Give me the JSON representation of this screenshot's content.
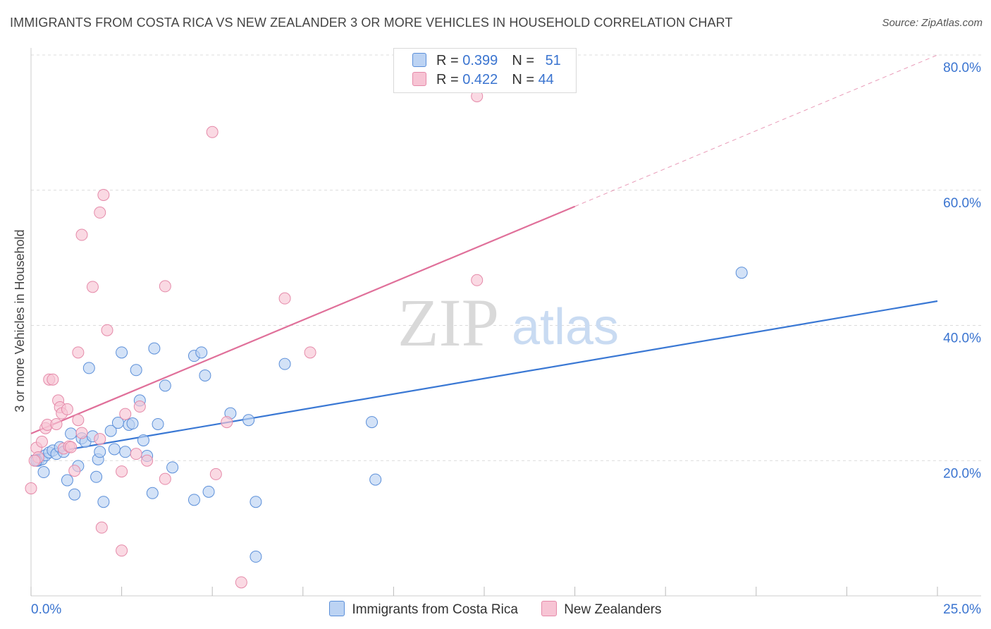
{
  "header": {
    "title": "IMMIGRANTS FROM COSTA RICA VS NEW ZEALANDER 3 OR MORE VEHICLES IN HOUSEHOLD CORRELATION CHART",
    "source": "Source: ZipAtlas.com"
  },
  "watermark": {
    "zip": "ZIP",
    "atlas": "atlas"
  },
  "colors": {
    "blue": "#3a78d4",
    "blue_fill": "#bcd3f3",
    "pink": "#e0709a",
    "pink_fill": "#f7c4d4"
  },
  "legend_top": {
    "rows": [
      {
        "r_label": "R = ",
        "r_value": "0.399",
        "n_label": "N = ",
        "n_value": "51"
      },
      {
        "r_label": "R = ",
        "r_value": "0.422",
        "n_label": "N = ",
        "n_value": "44"
      }
    ]
  },
  "legend_bottom": {
    "items": [
      {
        "label": "Immigrants from Costa Rica"
      },
      {
        "label": "New Zealanders"
      }
    ]
  },
  "chart_data": {
    "type": "scatter",
    "ylabel": "3 or more Vehicles in Household",
    "xlabel": "",
    "xlim": [
      0,
      25
    ],
    "ylim": [
      0,
      80
    ],
    "x_tick_labels": {
      "min": "0.0%",
      "max": "25.0%"
    },
    "y_ticks": [
      20,
      40,
      60,
      80
    ],
    "y_tick_labels": [
      "20.0%",
      "40.0%",
      "60.0%",
      "80.0%"
    ],
    "series": [
      {
        "name": "Immigrants from Costa Rica",
        "r": 0.399,
        "n": 51,
        "trend": {
          "x0": 0.0,
          "y0": 20.7,
          "x1": 25.0,
          "y1": 43.6,
          "dashed_from": null
        },
        "points": [
          [
            0.2,
            20.0
          ],
          [
            0.3,
            20.2
          ],
          [
            0.35,
            18.3
          ],
          [
            0.4,
            20.8
          ],
          [
            0.5,
            21.2
          ],
          [
            0.6,
            21.5
          ],
          [
            0.7,
            21.0
          ],
          [
            0.8,
            22.0
          ],
          [
            0.9,
            21.3
          ],
          [
            1.0,
            17.1
          ],
          [
            1.1,
            24.0
          ],
          [
            1.2,
            15.0
          ],
          [
            1.3,
            19.2
          ],
          [
            1.4,
            23.3
          ],
          [
            1.5,
            22.8
          ],
          [
            1.6,
            33.7
          ],
          [
            1.7,
            23.6
          ],
          [
            1.8,
            17.6
          ],
          [
            1.85,
            20.2
          ],
          [
            1.9,
            21.3
          ],
          [
            2.0,
            13.9
          ],
          [
            2.2,
            24.4
          ],
          [
            2.3,
            21.7
          ],
          [
            2.4,
            25.6
          ],
          [
            2.5,
            36.0
          ],
          [
            2.6,
            21.3
          ],
          [
            2.7,
            25.3
          ],
          [
            2.8,
            25.5
          ],
          [
            2.9,
            33.4
          ],
          [
            3.0,
            28.9
          ],
          [
            3.1,
            23.0
          ],
          [
            3.2,
            20.7
          ],
          [
            3.35,
            15.2
          ],
          [
            3.4,
            36.6
          ],
          [
            3.5,
            25.4
          ],
          [
            3.7,
            31.1
          ],
          [
            3.9,
            19.0
          ],
          [
            4.5,
            14.2
          ],
          [
            4.5,
            35.5
          ],
          [
            4.7,
            36.0
          ],
          [
            4.9,
            15.4
          ],
          [
            4.8,
            32.6
          ],
          [
            5.5,
            27.0
          ],
          [
            6.0,
            26.0
          ],
          [
            6.2,
            13.9
          ],
          [
            6.2,
            5.8
          ],
          [
            7.0,
            34.3
          ],
          [
            9.4,
            25.7
          ],
          [
            9.5,
            17.2
          ],
          [
            19.6,
            47.8
          ],
          [
            0.15,
            20.0
          ]
        ]
      },
      {
        "name": "New Zealanders",
        "r": 0.422,
        "n": 44,
        "trend": {
          "x0": 0.0,
          "y0": 24.0,
          "x1": 25.0,
          "y1": 80.0,
          "dashed_from": 15.0
        },
        "points": [
          [
            0.0,
            15.9
          ],
          [
            0.15,
            21.9
          ],
          [
            0.2,
            20.5
          ],
          [
            0.3,
            22.8
          ],
          [
            0.4,
            24.8
          ],
          [
            0.45,
            25.3
          ],
          [
            0.5,
            32.0
          ],
          [
            0.6,
            32.0
          ],
          [
            0.7,
            25.4
          ],
          [
            0.75,
            28.9
          ],
          [
            0.8,
            27.9
          ],
          [
            0.85,
            27.0
          ],
          [
            0.9,
            21.8
          ],
          [
            1.0,
            27.6
          ],
          [
            1.05,
            22.1
          ],
          [
            1.1,
            22.0
          ],
          [
            1.2,
            18.5
          ],
          [
            1.3,
            26.0
          ],
          [
            1.3,
            36.0
          ],
          [
            1.4,
            24.1
          ],
          [
            1.4,
            53.4
          ],
          [
            1.7,
            45.7
          ],
          [
            1.9,
            23.2
          ],
          [
            1.9,
            56.7
          ],
          [
            1.95,
            10.1
          ],
          [
            2.0,
            59.3
          ],
          [
            2.1,
            39.3
          ],
          [
            2.5,
            6.7
          ],
          [
            2.5,
            18.4
          ],
          [
            2.6,
            26.9
          ],
          [
            2.9,
            21.0
          ],
          [
            3.0,
            28.0
          ],
          [
            3.2,
            20.0
          ],
          [
            3.7,
            17.3
          ],
          [
            3.7,
            45.8
          ],
          [
            5.0,
            68.6
          ],
          [
            5.1,
            18.0
          ],
          [
            5.4,
            25.7
          ],
          [
            5.8,
            2.0
          ],
          [
            7.0,
            44.0
          ],
          [
            7.7,
            36.0
          ],
          [
            12.3,
            73.9
          ],
          [
            12.3,
            46.7
          ],
          [
            0.1,
            20.0
          ]
        ]
      }
    ]
  }
}
